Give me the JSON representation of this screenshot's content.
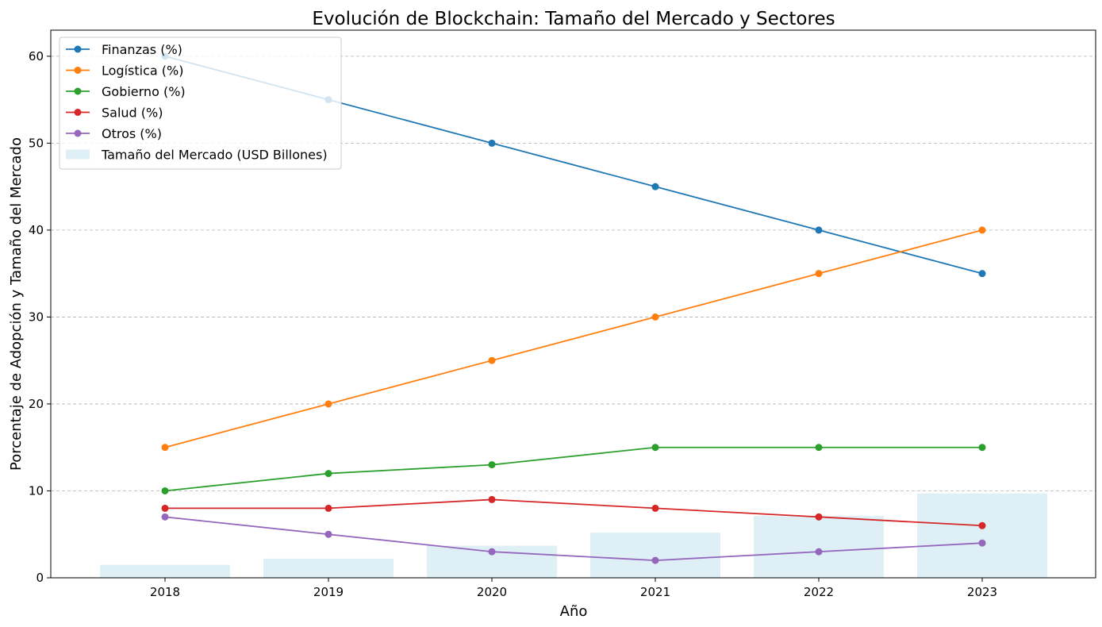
{
  "chart_data": {
    "type": "line",
    "title": "Evolución de Blockchain: Tamaño del Mercado y Sectores",
    "xlabel": "Año",
    "ylabel": "Porcentaje de Adopción y Tamaño del Mercado",
    "x": [
      "2018",
      "2019",
      "2020",
      "2021",
      "2022",
      "2023"
    ],
    "ylim": [
      0,
      63
    ],
    "yticks": [
      0,
      10,
      20,
      30,
      40,
      50,
      60
    ],
    "grid": "horizontal dashed",
    "legend_position": "upper-left",
    "bars": {
      "name": "Tamaño del Mercado (USD Billones)",
      "color": "#add8e6",
      "values": [
        1.5,
        2.2,
        3.7,
        5.2,
        7.1,
        9.7
      ]
    },
    "series": [
      {
        "name": "Finanzas (%)",
        "color": "#1f77b4",
        "values": [
          60,
          55,
          50,
          45,
          40,
          35
        ]
      },
      {
        "name": "Logística (%)",
        "color": "#ff7f0e",
        "values": [
          15,
          20,
          25,
          30,
          35,
          40
        ]
      },
      {
        "name": "Gobierno (%)",
        "color": "#2ca02c",
        "values": [
          10,
          12,
          13,
          15,
          15,
          15
        ]
      },
      {
        "name": "Salud (%)",
        "color": "#d62728",
        "values": [
          8,
          8,
          9,
          8,
          7,
          6
        ]
      },
      {
        "name": "Otros (%)",
        "color": "#9467bd",
        "values": [
          7,
          5,
          3,
          2,
          3,
          4
        ]
      }
    ]
  }
}
